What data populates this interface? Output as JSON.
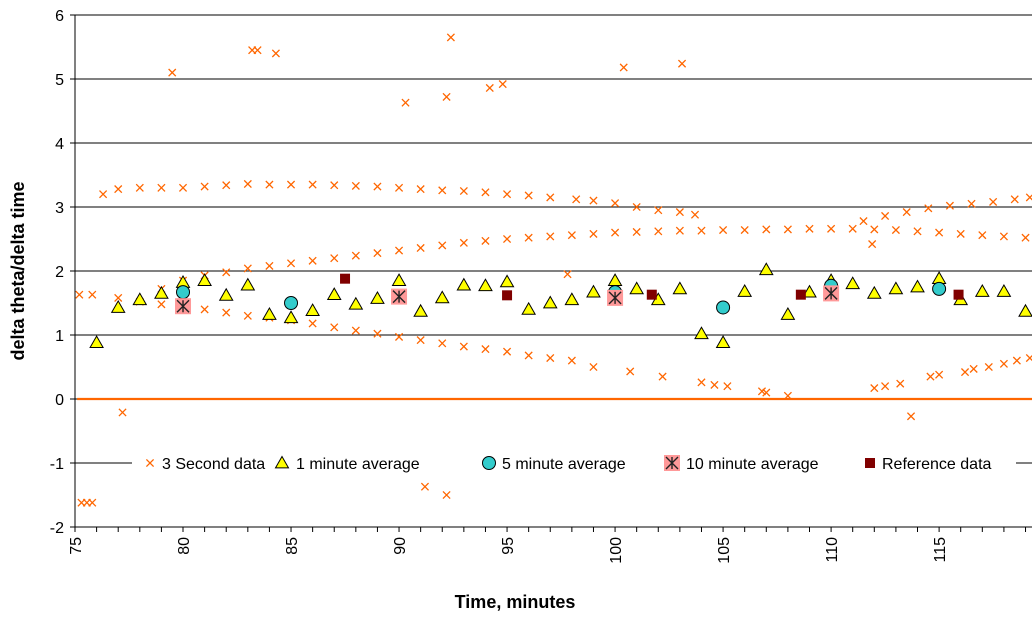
{
  "colors": {
    "three_second": "#ff6600",
    "one_minute_fill": "#ffff00",
    "five_minute_fill": "#33cccc",
    "ten_minute_marker": "#8b0000",
    "ten_minute_box": "#ff9999",
    "reference": "#800000",
    "gridline": "#000000"
  },
  "chart_data": {
    "type": "scatter",
    "title": "",
    "xlabel": "Time, minutes",
    "ylabel": "delta theta/delta time",
    "xlim": [
      75,
      119.3
    ],
    "ylim": [
      -2,
      6
    ],
    "x_ticks": [
      75,
      80,
      85,
      90,
      95,
      100,
      105,
      110,
      115
    ],
    "y_ticks": [
      -2,
      -1,
      0,
      1,
      2,
      3,
      4,
      5,
      6
    ],
    "grid": "horizontal major",
    "legend": "inside, across y=-1",
    "series": [
      {
        "name": "3 Second data",
        "marker": "x",
        "points": [
          [
            75.2,
            1.63
          ],
          [
            75.3,
            -1.62
          ],
          [
            75.55,
            -1.62
          ],
          [
            75.8,
            -1.62
          ],
          [
            77.2,
            -0.21
          ],
          [
            79.5,
            5.1
          ],
          [
            83.2,
            5.45
          ],
          [
            83.45,
            5.45
          ],
          [
            84.3,
            5.4
          ],
          [
            90.3,
            4.63
          ],
          [
            92.2,
            4.72
          ],
          [
            92.4,
            5.65
          ],
          [
            94.2,
            4.86
          ],
          [
            94.8,
            4.92
          ],
          [
            100.4,
            5.18
          ],
          [
            103.1,
            5.24
          ],
          [
            91.2,
            -1.37
          ],
          [
            92.2,
            -1.5
          ],
          [
            113.7,
            -0.27
          ],
          [
            111.9,
            2.42
          ],
          [
            107,
            0.1
          ],
          [
            97.8,
            1.95
          ],
          [
            76.3,
            3.2
          ],
          [
            77,
            3.28
          ],
          [
            78,
            3.3
          ],
          [
            79,
            3.3
          ],
          [
            80,
            3.3
          ],
          [
            81,
            3.32
          ],
          [
            82,
            3.34
          ],
          [
            83,
            3.36
          ],
          [
            84,
            3.35
          ],
          [
            85,
            3.35
          ],
          [
            86,
            3.35
          ],
          [
            87,
            3.34
          ],
          [
            88,
            3.33
          ],
          [
            89,
            3.32
          ],
          [
            90,
            3.3
          ],
          [
            91,
            3.28
          ],
          [
            92,
            3.26
          ],
          [
            93,
            3.25
          ],
          [
            94,
            3.23
          ],
          [
            95,
            3.2
          ],
          [
            96,
            3.18
          ],
          [
            97,
            3.15
          ],
          [
            98.2,
            3.12
          ],
          [
            99,
            3.1
          ],
          [
            100,
            3.06
          ],
          [
            101,
            3.0
          ],
          [
            102,
            2.95
          ],
          [
            103,
            2.92
          ],
          [
            103.7,
            2.88
          ],
          [
            111.5,
            2.78
          ],
          [
            112.5,
            2.86
          ],
          [
            113.5,
            2.92
          ],
          [
            114.5,
            2.98
          ],
          [
            115.5,
            3.02
          ],
          [
            116.5,
            3.05
          ],
          [
            117.5,
            3.08
          ],
          [
            118.5,
            3.12
          ],
          [
            119.2,
            3.15
          ],
          [
            75.8,
            1.63
          ],
          [
            77,
            1.58
          ],
          [
            78,
            1.52
          ],
          [
            79,
            1.48
          ],
          [
            80,
            1.45
          ],
          [
            81,
            1.4
          ],
          [
            82,
            1.35
          ],
          [
            83,
            1.3
          ],
          [
            84,
            1.27
          ],
          [
            85,
            1.23
          ],
          [
            86,
            1.18
          ],
          [
            87,
            1.12
          ],
          [
            88,
            1.07
          ],
          [
            89,
            1.02
          ],
          [
            90,
            0.97
          ],
          [
            91,
            0.92
          ],
          [
            92,
            0.87
          ],
          [
            93,
            0.82
          ],
          [
            94,
            0.78
          ],
          [
            95,
            0.74
          ],
          [
            96,
            0.68
          ],
          [
            97,
            0.64
          ],
          [
            98,
            0.6
          ],
          [
            99,
            0.5
          ],
          [
            100.7,
            0.43
          ],
          [
            102.2,
            0.35
          ],
          [
            104,
            0.26
          ],
          [
            104.6,
            0.22
          ],
          [
            105.2,
            0.2
          ],
          [
            106.8,
            0.12
          ],
          [
            108,
            0.05
          ],
          [
            112,
            0.17
          ],
          [
            112.5,
            0.2
          ],
          [
            113.2,
            0.24
          ],
          [
            114.6,
            0.35
          ],
          [
            115,
            0.38
          ],
          [
            116.2,
            0.42
          ],
          [
            116.6,
            0.47
          ],
          [
            117.3,
            0.5
          ],
          [
            118,
            0.55
          ],
          [
            118.6,
            0.6
          ],
          [
            119.2,
            0.64
          ],
          [
            79,
            1.72
          ],
          [
            80,
            1.85
          ],
          [
            81,
            1.93
          ],
          [
            82,
            1.98
          ],
          [
            83,
            2.04
          ],
          [
            84,
            2.08
          ],
          [
            85,
            2.12
          ],
          [
            86,
            2.16
          ],
          [
            87,
            2.2
          ],
          [
            88,
            2.24
          ],
          [
            89,
            2.28
          ],
          [
            90,
            2.32
          ],
          [
            91,
            2.36
          ],
          [
            92,
            2.4
          ],
          [
            93,
            2.44
          ],
          [
            94,
            2.47
          ],
          [
            95,
            2.5
          ],
          [
            96,
            2.52
          ],
          [
            97,
            2.54
          ],
          [
            98,
            2.56
          ],
          [
            99,
            2.58
          ],
          [
            100,
            2.6
          ],
          [
            101,
            2.61
          ],
          [
            102,
            2.62
          ],
          [
            103,
            2.63
          ],
          [
            104,
            2.63
          ],
          [
            105,
            2.64
          ],
          [
            106,
            2.64
          ],
          [
            107,
            2.65
          ],
          [
            108,
            2.65
          ],
          [
            109,
            2.66
          ],
          [
            110,
            2.66
          ],
          [
            111,
            2.66
          ],
          [
            112,
            2.65
          ],
          [
            113,
            2.64
          ],
          [
            114,
            2.62
          ],
          [
            115,
            2.6
          ],
          [
            116,
            2.58
          ],
          [
            117,
            2.56
          ],
          [
            118,
            2.54
          ],
          [
            119,
            2.52
          ]
        ]
      },
      {
        "name": "1 minute average",
        "marker": "triangle",
        "points": [
          [
            76,
            0.88
          ],
          [
            77,
            1.43
          ],
          [
            78,
            1.55
          ],
          [
            79,
            1.65
          ],
          [
            80,
            1.82
          ],
          [
            81,
            1.85
          ],
          [
            82,
            1.62
          ],
          [
            83,
            1.78
          ],
          [
            84,
            1.32
          ],
          [
            85,
            1.27
          ],
          [
            86,
            1.38
          ],
          [
            87,
            1.63
          ],
          [
            88,
            1.48
          ],
          [
            89,
            1.57
          ],
          [
            90,
            1.85
          ],
          [
            91,
            1.37
          ],
          [
            92,
            1.58
          ],
          [
            93,
            1.78
          ],
          [
            94,
            1.77
          ],
          [
            95,
            1.83
          ],
          [
            96,
            1.4
          ],
          [
            97,
            1.5
          ],
          [
            98,
            1.55
          ],
          [
            99,
            1.67
          ],
          [
            100,
            1.85
          ],
          [
            101,
            1.72
          ],
          [
            102,
            1.55
          ],
          [
            103,
            1.72
          ],
          [
            104,
            1.02
          ],
          [
            105,
            0.88
          ],
          [
            106,
            1.68
          ],
          [
            107,
            2.02
          ],
          [
            108,
            1.32
          ],
          [
            109,
            1.67
          ],
          [
            110,
            1.85
          ],
          [
            111,
            1.8
          ],
          [
            112,
            1.65
          ],
          [
            113,
            1.72
          ],
          [
            114,
            1.75
          ],
          [
            115,
            1.88
          ],
          [
            116,
            1.55
          ],
          [
            117,
            1.68
          ],
          [
            118,
            1.68
          ],
          [
            119,
            1.37
          ]
        ]
      },
      {
        "name": "5 minute average",
        "marker": "circle",
        "points": [
          [
            80,
            1.67
          ],
          [
            85,
            1.5
          ],
          [
            90,
            1.6
          ],
          [
            100,
            1.67
          ],
          [
            105,
            1.43
          ],
          [
            110,
            1.77
          ],
          [
            115,
            1.72
          ]
        ]
      },
      {
        "name": "10 minute average",
        "marker": "asterisk-box",
        "points": [
          [
            80,
            1.45
          ],
          [
            90,
            1.6
          ],
          [
            100,
            1.58
          ],
          [
            110,
            1.65
          ]
        ]
      },
      {
        "name": "Reference data",
        "marker": "square",
        "points": [
          [
            87.5,
            1.88
          ],
          [
            95,
            1.62
          ],
          [
            101.7,
            1.63
          ],
          [
            108.6,
            1.63
          ],
          [
            115.9,
            1.63
          ]
        ]
      }
    ]
  }
}
